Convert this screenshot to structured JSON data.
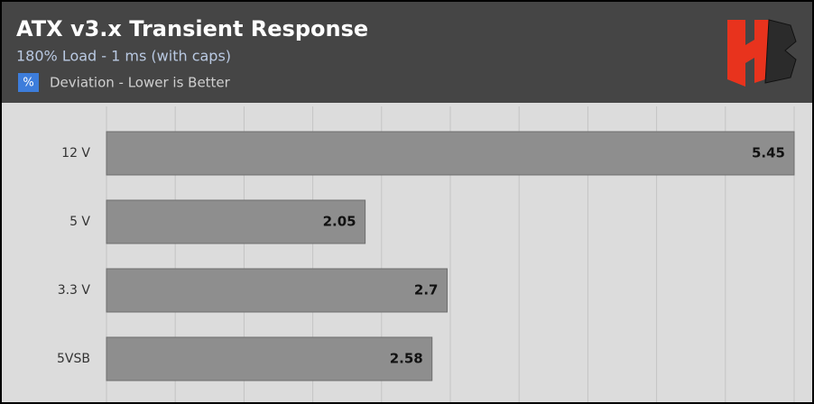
{
  "chart_data": {
    "type": "hbar",
    "title": "ATX v3.x Transient Response",
    "subtitle": "180% Load - 1 ms (with caps)",
    "unit_label": "%",
    "categories": [
      "12 V",
      "5 V",
      "3.3 V",
      "5VSB"
    ],
    "series": [
      {
        "name": "Deviation - Lower is Better",
        "color": "#8e8e8e",
        "values": [
          5.45,
          2.05,
          2.7,
          2.58
        ]
      }
    ],
    "xlim": [
      0,
      5.45
    ],
    "grid": true
  }
}
